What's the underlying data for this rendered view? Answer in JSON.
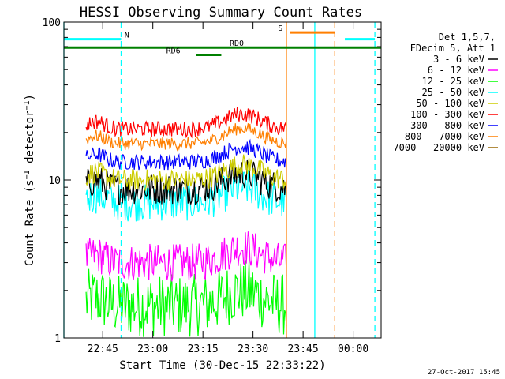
{
  "chart_data": {
    "type": "line",
    "title": "HESSI Observing Summary Count Rates",
    "xlabel": "Start Time (30-Dec-15 22:33:22)",
    "ylabel": "Count Rate (s⁻¹ detector⁻¹)",
    "ylabel_parts": {
      "main": "Count Rate (s",
      "sup1": "−1",
      "mid": " detector",
      "sup2": "−1",
      "end": ")"
    },
    "y_scale": "log",
    "ylim": [
      1,
      100
    ],
    "xlim": [
      "22:33:22",
      "00:08:22"
    ],
    "x_tick_labels": [
      "22:45",
      "23:00",
      "23:15",
      "23:30",
      "23:45",
      "00:00"
    ],
    "y_tick_labels": [
      "1",
      "10",
      "100"
    ],
    "grid": false,
    "legend_position": "top-right",
    "legend_header": [
      "Det 1,5,7,",
      "FDecim 5, Att 1"
    ],
    "data_window": [
      "22:40:00",
      "23:40:00"
    ],
    "series": [
      {
        "name": "3 - 6 keV",
        "color": "#000000",
        "typical": 8.8,
        "spread": 0.1
      },
      {
        "name": "6 - 12 keV",
        "color": "#ff00ff",
        "typical": 3.0,
        "spread": 0.12
      },
      {
        "name": "12 - 25 keV",
        "color": "#00ff00",
        "typical": 1.6,
        "spread": 0.2
      },
      {
        "name": "25 - 50 keV",
        "color": "#00ffff",
        "typical": 7.2,
        "spread": 0.12
      },
      {
        "name": "50 - 100 keV",
        "color": "#cccc00",
        "typical": 10.0,
        "spread": 0.07
      },
      {
        "name": "100 - 300 keV",
        "color": "#ff0000",
        "typical": 21.0,
        "spread": 0.05
      },
      {
        "name": "300 - 800 keV",
        "color": "#0000ff",
        "typical": 13.0,
        "spread": 0.05
      },
      {
        "name": "800 - 7000 keV",
        "color": "#ff7f00",
        "typical": 17.0,
        "spread": 0.04
      },
      {
        "name": "7000 - 20000 keV",
        "color": "#996600",
        "typical": null,
        "spread": 0
      }
    ],
    "flags": [
      {
        "label": "N",
        "color": "#00ffff",
        "segments": [
          [
            "22:33:22",
            "22:50:30"
          ],
          [
            "23:57:30",
            "00:06:30"
          ]
        ],
        "y": 78,
        "label_at": "22:51:30"
      },
      {
        "label": "RD0",
        "color": "#008000",
        "segments": [
          [
            "22:33:22",
            "00:08:22"
          ]
        ],
        "y": 69,
        "label_at": "23:23:00"
      },
      {
        "label": "RD6",
        "color": "#008000",
        "segments": [
          [
            "23:13:00",
            "23:20:30"
          ]
        ],
        "y": 62,
        "label_at": "23:04:00"
      },
      {
        "label": "S",
        "color": "#ff7f00",
        "segments": [
          [
            "23:41:00",
            "23:54:30"
          ]
        ],
        "y": 86,
        "label_at": "23:37:30"
      }
    ],
    "vertical_lines": [
      {
        "time": "22:33:22",
        "color": "#00ffff",
        "style": "solid"
      },
      {
        "time": "22:50:30",
        "color": "#00ffff",
        "style": "dashed"
      },
      {
        "time": "23:40:00",
        "color": "#ff7f00",
        "style": "solid"
      },
      {
        "time": "23:48:30",
        "color": "#00ffff",
        "style": "solid"
      },
      {
        "time": "23:54:30",
        "color": "#ff7f00",
        "style": "dashed"
      },
      {
        "time": "00:06:30",
        "color": "#00ffff",
        "style": "dashed"
      }
    ]
  },
  "footer": {
    "timestamp": "27-Oct-2017 15:45"
  }
}
